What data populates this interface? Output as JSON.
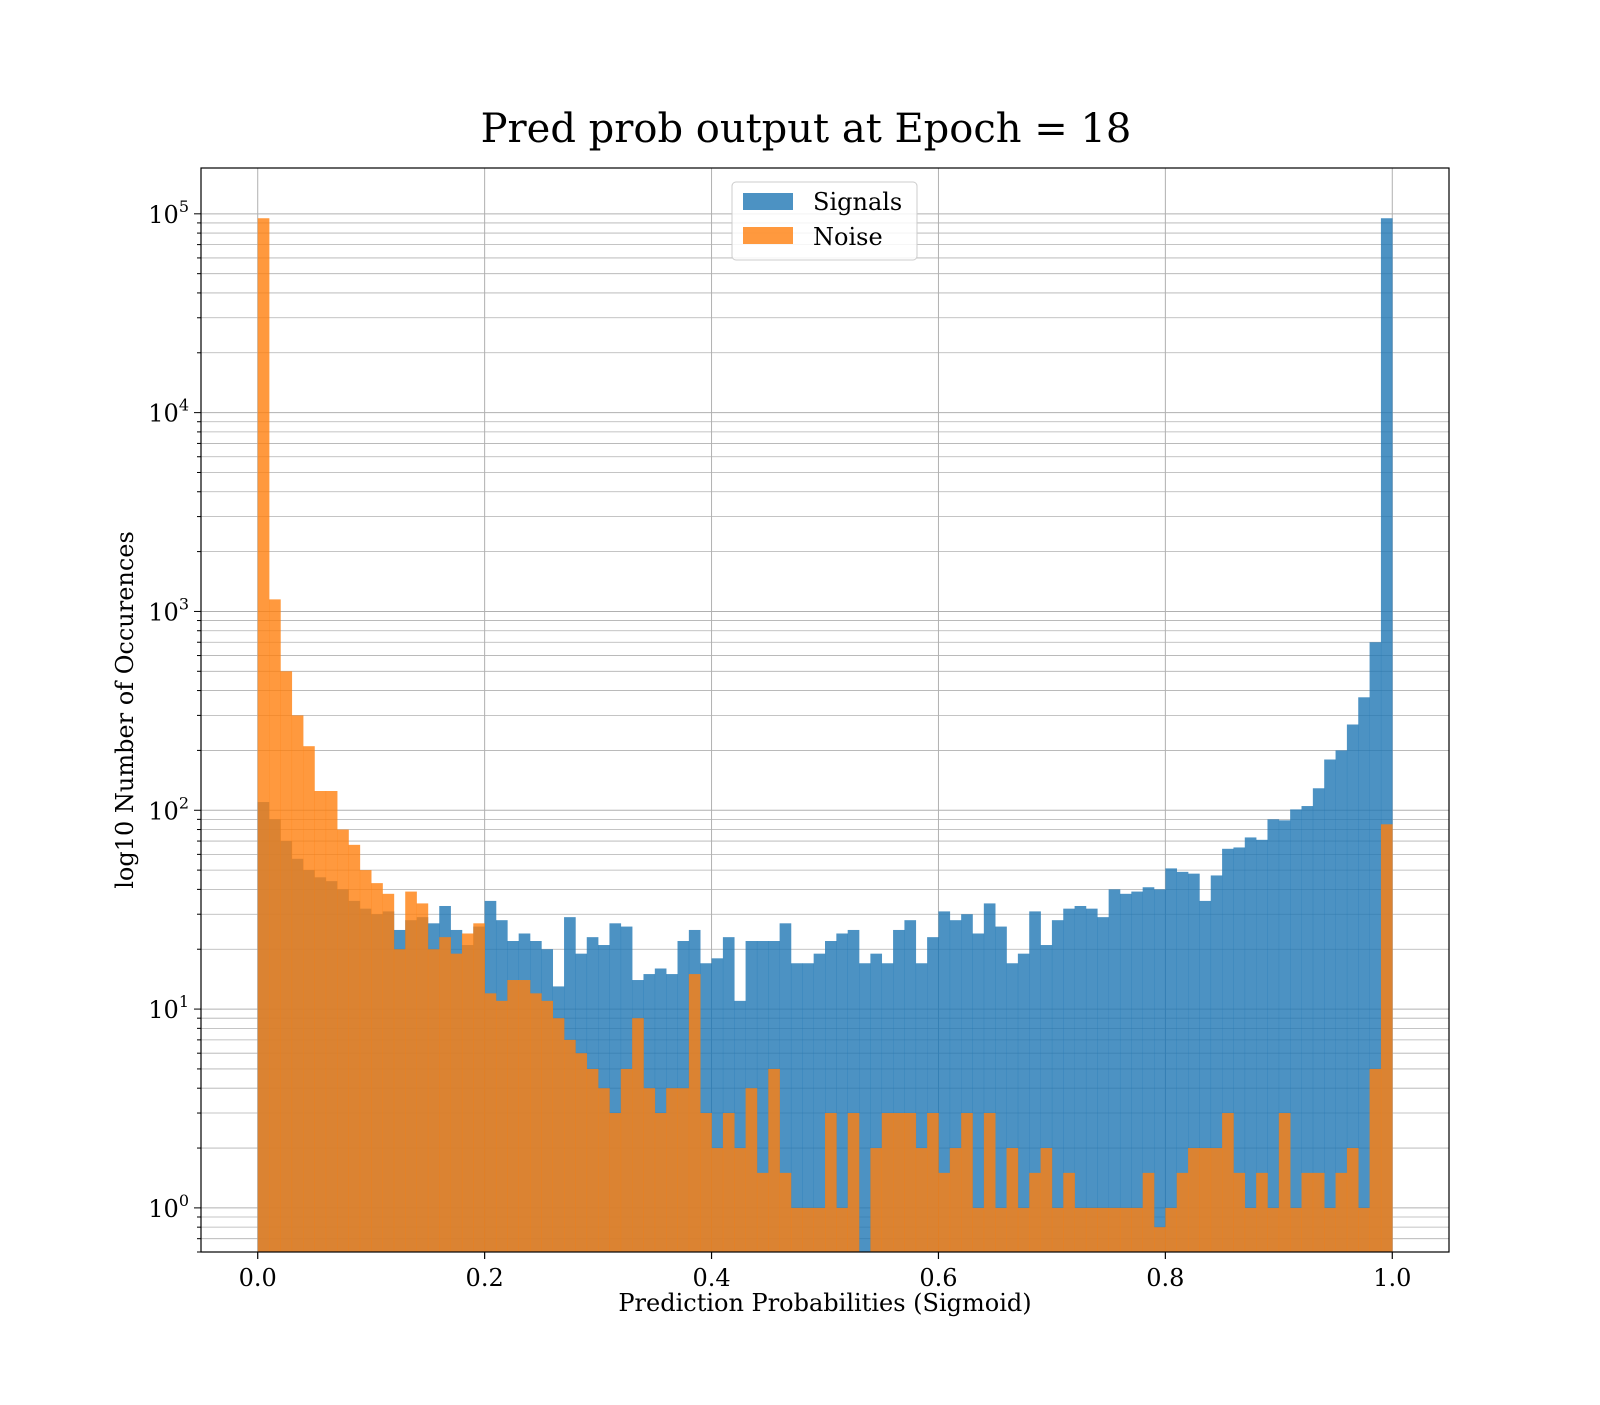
{
  "chart_data": {
    "type": "bar",
    "title": "Pred prob output at Epoch = 18",
    "xlabel": "Prediction Probabilities (Sigmoid)",
    "ylabel": "log10 Number of Occurences",
    "xscale": "linear",
    "yscale": "log",
    "xlim": [
      -0.05,
      1.05
    ],
    "ylim": [
      0.6,
      170000
    ],
    "grid": true,
    "legend_position": "top-center",
    "x_ticks": [
      {
        "value": 0.0,
        "label": "0.0"
      },
      {
        "value": 0.2,
        "label": "0.2"
      },
      {
        "value": 0.4,
        "label": "0.4"
      },
      {
        "value": 0.6,
        "label": "0.6"
      },
      {
        "value": 0.8,
        "label": "0.8"
      },
      {
        "value": 1.0,
        "label": "1.0"
      }
    ],
    "y_ticks": [
      {
        "value": 1,
        "base": "10",
        "exp": "0"
      },
      {
        "value": 10,
        "base": "10",
        "exp": "1"
      },
      {
        "value": 100,
        "base": "10",
        "exp": "2"
      },
      {
        "value": 1000,
        "base": "10",
        "exp": "3"
      },
      {
        "value": 10000,
        "base": "10",
        "exp": "4"
      },
      {
        "value": 100000,
        "base": "10",
        "exp": "5"
      }
    ],
    "bin_width": 0.01,
    "bin_starts": [
      0.0,
      0.01,
      0.02,
      0.03,
      0.04,
      0.05,
      0.06,
      0.07,
      0.08,
      0.09,
      0.1,
      0.11,
      0.12,
      0.13,
      0.14,
      0.15,
      0.16,
      0.17,
      0.18,
      0.19,
      0.2,
      0.21,
      0.22,
      0.23,
      0.24,
      0.25,
      0.26,
      0.27,
      0.28,
      0.29,
      0.3,
      0.31,
      0.32,
      0.33,
      0.34,
      0.35,
      0.36,
      0.37,
      0.38,
      0.39,
      0.4,
      0.41,
      0.42,
      0.43,
      0.44,
      0.45,
      0.46,
      0.47,
      0.48,
      0.49,
      0.5,
      0.51,
      0.52,
      0.53,
      0.54,
      0.55,
      0.56,
      0.57,
      0.58,
      0.59,
      0.6,
      0.61,
      0.62,
      0.63,
      0.64,
      0.65,
      0.66,
      0.67,
      0.68,
      0.69,
      0.7,
      0.71,
      0.72,
      0.73,
      0.74,
      0.75,
      0.76,
      0.77,
      0.78,
      0.79,
      0.8,
      0.81,
      0.82,
      0.83,
      0.84,
      0.85,
      0.86,
      0.87,
      0.88,
      0.89,
      0.9,
      0.91,
      0.92,
      0.93,
      0.94,
      0.95,
      0.96,
      0.97,
      0.98,
      0.99
    ],
    "series": [
      {
        "name": "Signals",
        "color": "#1f77b4",
        "opacity": 0.8,
        "values": [
          110,
          90,
          70,
          57,
          50,
          46,
          44,
          40,
          35,
          32,
          30,
          31,
          25,
          28,
          29,
          27,
          33,
          25,
          21,
          26,
          35,
          28,
          22,
          24,
          22,
          20,
          13,
          29,
          19,
          23,
          21,
          27,
          26,
          14,
          15,
          16,
          15,
          22,
          25,
          17,
          18,
          23,
          11,
          22,
          22,
          22,
          27,
          17,
          17,
          19,
          22,
          24,
          25,
          17,
          19,
          17,
          25,
          28,
          17,
          23,
          31,
          28,
          30,
          24,
          34,
          26,
          17,
          19,
          31,
          21,
          28,
          32,
          33,
          32,
          29,
          40,
          38,
          39,
          41,
          40,
          51,
          49,
          48,
          35,
          47,
          64,
          65,
          73,
          71,
          90,
          89,
          101,
          105,
          129,
          180,
          200,
          270,
          370,
          700,
          95000
        ]
      },
      {
        "name": "Noise",
        "color": "#ff7f0e",
        "opacity": 0.8,
        "values": [
          95000,
          1150,
          500,
          300,
          210,
          125,
          125,
          80,
          67,
          50,
          43,
          38,
          20,
          39,
          34,
          20,
          23,
          19,
          24,
          27,
          12,
          11,
          14,
          14,
          12,
          11,
          9,
          7,
          6,
          5,
          4,
          3,
          5,
          9,
          4,
          3,
          4,
          4,
          15,
          3,
          2,
          3,
          2,
          4,
          1.5,
          5,
          1.5,
          1,
          1,
          1,
          3,
          1,
          3,
          0.5,
          2,
          3,
          3,
          3,
          2,
          3,
          1.5,
          2,
          3,
          1,
          3,
          1,
          2,
          1,
          1.5,
          2,
          1,
          1.5,
          1,
          1,
          1,
          1,
          1,
          1,
          1.5,
          0.8,
          1,
          1.5,
          2,
          2,
          2,
          3,
          1.5,
          1,
          1.5,
          1,
          3,
          1,
          1.5,
          1.5,
          1,
          1.5,
          2,
          1,
          5,
          85
        ]
      }
    ]
  }
}
